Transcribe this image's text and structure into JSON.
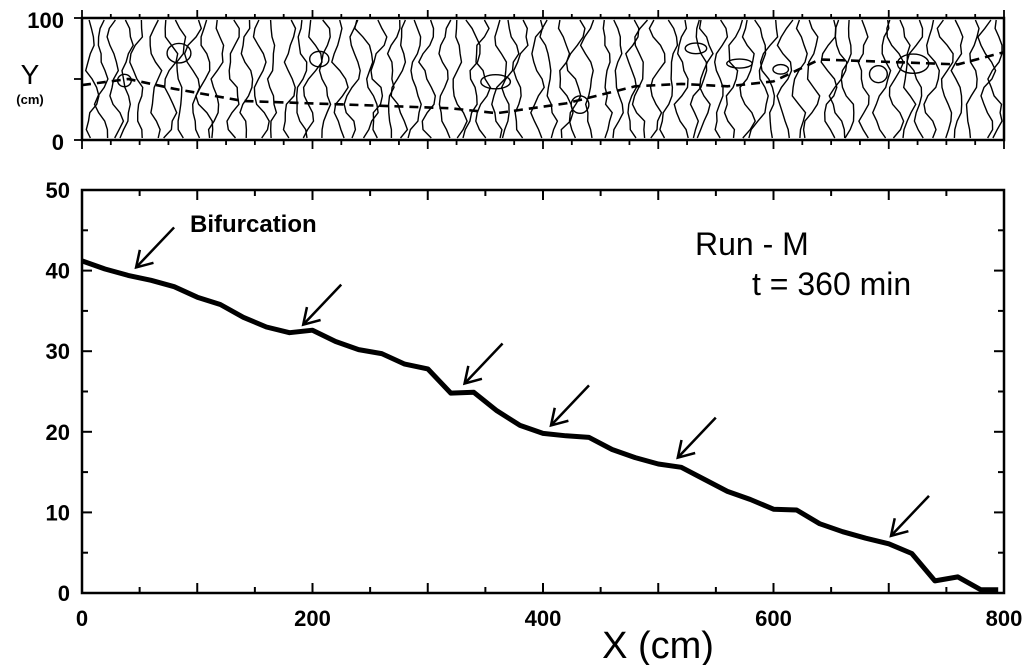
{
  "chart_data": [
    {
      "type": "contour",
      "ylabel": "Y",
      "yunit": "(cm)",
      "yticks": [
        0,
        100
      ],
      "ylim": [
        0,
        100
      ],
      "xlim": [
        0,
        800
      ],
      "grid": false
    },
    {
      "type": "line",
      "x": [
        0,
        20,
        40,
        60,
        80,
        100,
        120,
        140,
        160,
        180,
        200,
        220,
        240,
        260,
        280,
        300,
        320,
        340,
        360,
        380,
        400,
        420,
        440,
        460,
        480,
        500,
        520,
        540,
        560,
        580,
        600,
        620,
        640,
        660,
        680,
        700,
        720,
        740,
        760,
        780,
        795
      ],
      "y": [
        41.2,
        40.2,
        39.4,
        38.8,
        38.0,
        36.7,
        35.8,
        34.2,
        33.0,
        32.3,
        32.6,
        31.2,
        30.2,
        29.7,
        28.4,
        27.8,
        24.8,
        24.9,
        22.6,
        20.8,
        19.8,
        19.5,
        19.3,
        17.8,
        16.8,
        16.0,
        15.6,
        14.1,
        12.6,
        11.6,
        10.4,
        10.3,
        8.6,
        7.6,
        6.8,
        6.1,
        4.9,
        1.5,
        2.0,
        0.4,
        0.4
      ],
      "xlabel": "X (cm)",
      "xticks": [
        0,
        200,
        400,
        600,
        800
      ],
      "yticks": [
        0,
        10,
        20,
        30,
        40,
        50
      ],
      "xlim": [
        0,
        800
      ],
      "ylim": [
        0,
        50
      ],
      "grid": false,
      "annotations": [
        {
          "text": "Bifurcation",
          "x": 40,
          "y": 39.4
        },
        {
          "text": "",
          "x": 185,
          "y": 32.3
        },
        {
          "text": "",
          "x": 325,
          "y": 25.0
        },
        {
          "text": "",
          "x": 400,
          "y": 19.8
        },
        {
          "text": "",
          "x": 510,
          "y": 15.8
        },
        {
          "text": "",
          "x": 695,
          "y": 6.1
        }
      ],
      "run_label": "Run - M",
      "time_label": "t = 360 min"
    }
  ]
}
